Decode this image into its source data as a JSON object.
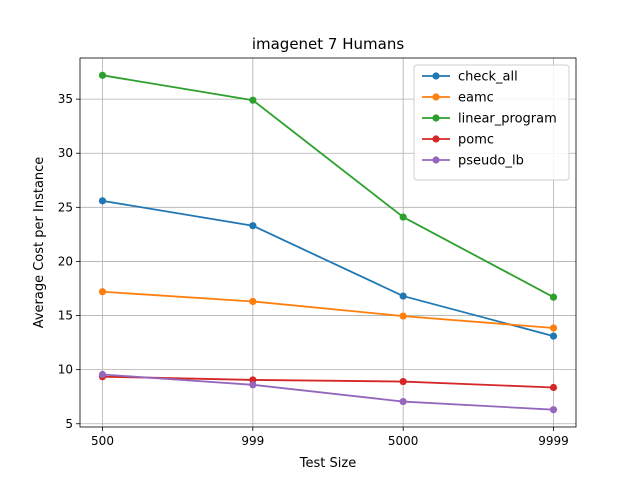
{
  "chart_data": {
    "type": "line",
    "title": "imagenet 7 Humans",
    "xlabel": "Test Size",
    "ylabel": "Average Cost per Instance",
    "categories": [
      "500",
      "999",
      "5000",
      "9999"
    ],
    "y_ticks": [
      5,
      10,
      15,
      20,
      25,
      30,
      35
    ],
    "ylim": [
      4.7,
      38.8
    ],
    "grid": true,
    "legend_position": "top-right",
    "series": [
      {
        "name": "check_all",
        "color": "#1f77b4",
        "values": [
          25.6,
          23.3,
          16.8,
          13.1
        ]
      },
      {
        "name": "eamc",
        "color": "#ff7f0e",
        "values": [
          17.2,
          16.3,
          14.95,
          13.85
        ]
      },
      {
        "name": "linear_program",
        "color": "#2ca02c",
        "values": [
          37.2,
          34.9,
          24.1,
          16.7
        ]
      },
      {
        "name": "pomc",
        "color": "#d62728",
        "values": [
          9.35,
          9.05,
          8.9,
          8.35
        ]
      },
      {
        "name": "pseudo_lb",
        "color": "#9467bd",
        "values": [
          9.55,
          8.6,
          7.05,
          6.3
        ]
      }
    ]
  }
}
